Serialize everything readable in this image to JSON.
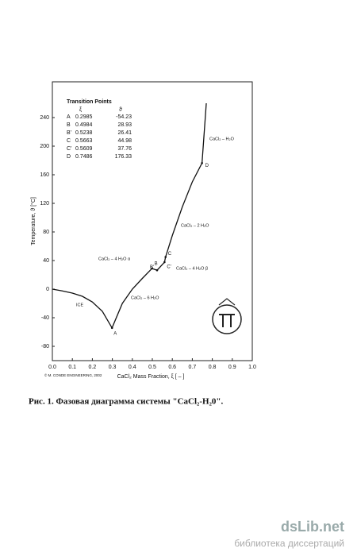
{
  "chart_data": {
    "type": "line",
    "xlabel": "CaCl₂ Mass Fraction, ξ [ – ]",
    "ylabel": "Temperature, ϑ [°C]",
    "xlim": [
      0,
      1
    ],
    "ylim": [
      -100,
      290
    ],
    "xticks": [
      {
        "value": 0,
        "label": "0.0"
      },
      0.1,
      0.2,
      0.3,
      0.4,
      0.5,
      0.6,
      0.7,
      0.8,
      0.9,
      {
        "value": 1,
        "label": "1.0"
      }
    ],
    "yticks": [
      -80,
      -40,
      0,
      40,
      80,
      120,
      160,
      200,
      240
    ],
    "series": [
      {
        "color": "#111111",
        "x": [
          0,
          0.05,
          0.1,
          0.15,
          0.2,
          0.25,
          0.2985,
          0.35,
          0.4,
          0.45,
          0.4984,
          0.5238,
          0.5609,
          0.5663,
          0.6,
          0.65,
          0.7,
          0.7486,
          0.77
        ],
        "values": [
          0,
          -2.5,
          -5.5,
          -10,
          -18,
          -31,
          -54.23,
          -20,
          0,
          15,
          28.93,
          26.41,
          37.76,
          44.98,
          75,
          115,
          150,
          176.33,
          260
        ]
      }
    ],
    "table": {
      "title": "Transition Points",
      "columns": [
        "ξ",
        "ϑ"
      ],
      "rows": [
        {
          "label": "A",
          "xi": 0.2985,
          "theta": -54.23
        },
        {
          "label": "B",
          "xi": 0.4984,
          "theta": 28.93
        },
        {
          "label": "B'",
          "xi": 0.5238,
          "theta": 26.41
        },
        {
          "label": "C",
          "xi": 0.5663,
          "theta": 44.98
        },
        {
          "label": "C'",
          "xi": 0.5609,
          "theta": 37.76
        },
        {
          "label": "D",
          "xi": 0.7486,
          "theta": 176.33
        }
      ]
    },
    "annotations": [
      "ICE",
      "CaCl₂ – 6 H₂O",
      "CaCl₂ – 4 H₂O α",
      "CaCl₂ – 4 H₂O β",
      "CaCl₂ – 2 H₂O",
      "CaCl₂ – H₂O"
    ],
    "copyright": "© M. CONDE ENGINEERING, 2002"
  },
  "caption": "Рис. 1. Фазовая диаграмма системы \"CaCl₂-H₂0\".",
  "watermark": {
    "title": "dsLib.net",
    "subtitle": "библиотека диссертаций"
  }
}
